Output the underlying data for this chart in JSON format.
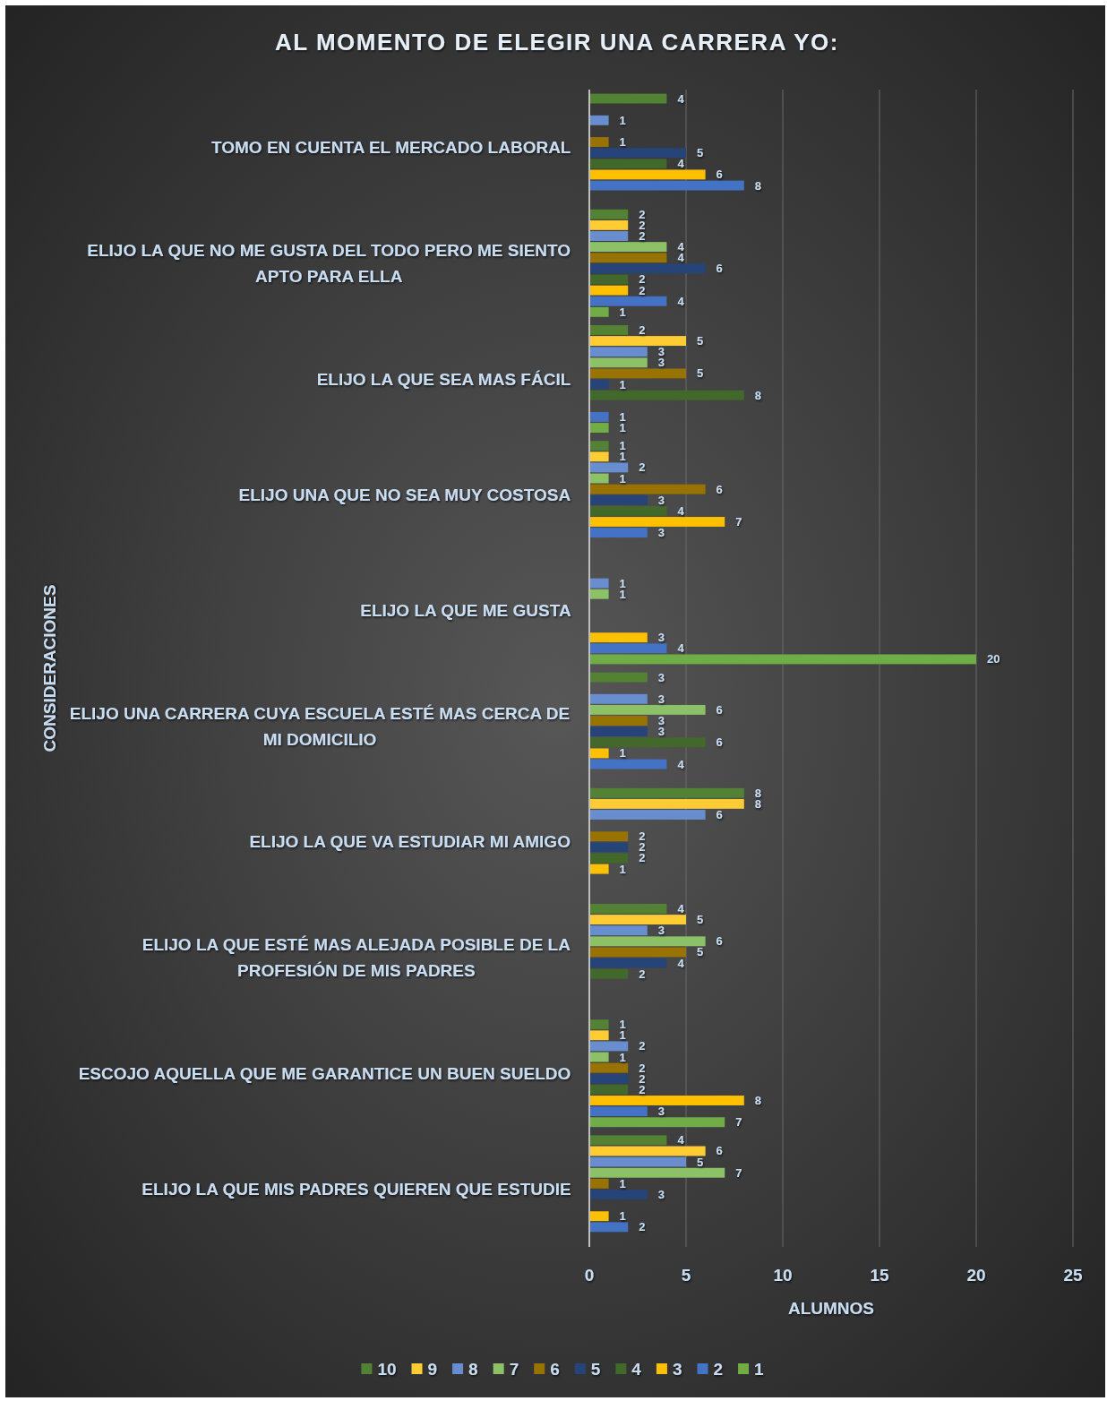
{
  "chart_data": {
    "type": "bar",
    "orientation": "horizontal",
    "title": "AL MOMENTO DE ELEGIR UNA CARRERA YO:",
    "xlabel": "ALUMNOS",
    "ylabel": "CONSIDERACIONES",
    "categories": [
      "TOMO EN CUENTA EL MERCADO LABORAL",
      "ELIJO LA QUE NO ME GUSTA DEL TODO PERO ME SIENTO APTO PARA ELLA",
      "ELIJO LA QUE SEA MAS FÁCIL",
      "ELIJO UNA QUE NO SEA MUY COSTOSA",
      "ELIJO LA QUE ME GUSTA",
      "ELIJO UNA CARRERA CUYA ESCUELA ESTÉ MAS CERCA DE MI DOMICILIO",
      "ELIJO LA QUE VA ESTUDIAR MI AMIGO",
      "ELIJO LA QUE ESTÉ MAS ALEJADA POSIBLE DE LA PROFESIÓN DE MIS PADRES",
      "ESCOJO AQUELLA QUE ME GARANTICE UN BUEN SUELDO",
      "ELIJO LA QUE MIS PADRES QUIEREN QUE ESTUDIE"
    ],
    "series": [
      {
        "name": "10",
        "color": "#548235",
        "values": [
          4,
          2,
          2,
          1,
          null,
          3,
          8,
          4,
          1,
          4
        ]
      },
      {
        "name": "9",
        "color": "#ffcd33",
        "values": [
          null,
          2,
          5,
          1,
          null,
          null,
          8,
          5,
          1,
          6
        ]
      },
      {
        "name": "8",
        "color": "#698ed0",
        "values": [
          1,
          2,
          3,
          2,
          1,
          3,
          6,
          3,
          2,
          5
        ]
      },
      {
        "name": "7",
        "color": "#8cc168",
        "values": [
          null,
          4,
          3,
          1,
          1,
          6,
          null,
          6,
          1,
          7
        ]
      },
      {
        "name": "6",
        "color": "#997300",
        "values": [
          1,
          4,
          5,
          6,
          null,
          3,
          2,
          5,
          2,
          1
        ]
      },
      {
        "name": "5",
        "color": "#264478",
        "values": [
          5,
          6,
          1,
          3,
          null,
          3,
          2,
          4,
          2,
          3
        ]
      },
      {
        "name": "4",
        "color": "#43682b",
        "values": [
          4,
          2,
          8,
          4,
          null,
          6,
          2,
          2,
          2,
          null
        ]
      },
      {
        "name": "3",
        "color": "#ffc000",
        "values": [
          6,
          2,
          null,
          7,
          3,
          1,
          1,
          null,
          8,
          1
        ]
      },
      {
        "name": "2",
        "color": "#4472c4",
        "values": [
          8,
          4,
          1,
          3,
          4,
          4,
          null,
          null,
          3,
          2
        ]
      },
      {
        "name": "1",
        "color": "#70ad47",
        "values": [
          null,
          1,
          1,
          null,
          20,
          null,
          null,
          null,
          7,
          null
        ]
      }
    ],
    "xlim": [
      0,
      25
    ],
    "xticks": [
      0,
      5,
      10,
      15,
      20,
      25
    ],
    "grid": "x",
    "legend": "bottom",
    "data_labels": true
  }
}
